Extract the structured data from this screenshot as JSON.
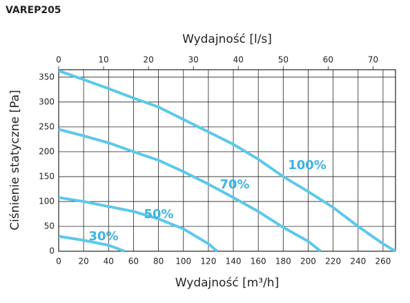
{
  "chart_data": {
    "type": "line",
    "title": "VAREP205",
    "xlabel": "Wydajność [m³/h]",
    "x2label": "Wydajność [l/s]",
    "ylabel": "Ciśnienie statyczne [Pa]",
    "xlim": [
      0,
      270
    ],
    "xticks": [
      0,
      20,
      40,
      60,
      80,
      100,
      120,
      140,
      160,
      180,
      200,
      220,
      240,
      260
    ],
    "x2lim": [
      0,
      75
    ],
    "x2ticks": [
      0,
      10,
      20,
      30,
      40,
      50,
      60,
      70
    ],
    "ylim": [
      0,
      365
    ],
    "yticks": [
      0,
      50,
      100,
      150,
      200,
      250,
      300,
      350
    ],
    "grid": true,
    "series": [
      {
        "name": "30%",
        "color": "#5bc8ec",
        "x": [
          0,
          20,
          40,
          53
        ],
        "values": [
          30,
          22,
          12,
          0
        ]
      },
      {
        "name": "50%",
        "color": "#5bc8ec",
        "x": [
          0,
          20,
          40,
          60,
          80,
          100,
          120,
          127
        ],
        "values": [
          108,
          100,
          90,
          80,
          65,
          45,
          15,
          0
        ]
      },
      {
        "name": "70%",
        "color": "#5bc8ec",
        "x": [
          0,
          20,
          40,
          60,
          80,
          100,
          120,
          140,
          160,
          180,
          200,
          210
        ],
        "values": [
          245,
          232,
          218,
          200,
          183,
          160,
          135,
          108,
          80,
          48,
          20,
          0
        ]
      },
      {
        "name": "100%",
        "color": "#5bc8ec",
        "x": [
          0,
          20,
          40,
          60,
          80,
          100,
          120,
          140,
          160,
          180,
          200,
          220,
          240,
          260,
          270
        ],
        "values": [
          363,
          345,
          327,
          308,
          290,
          265,
          240,
          215,
          185,
          150,
          120,
          88,
          50,
          15,
          0
        ]
      }
    ]
  }
}
